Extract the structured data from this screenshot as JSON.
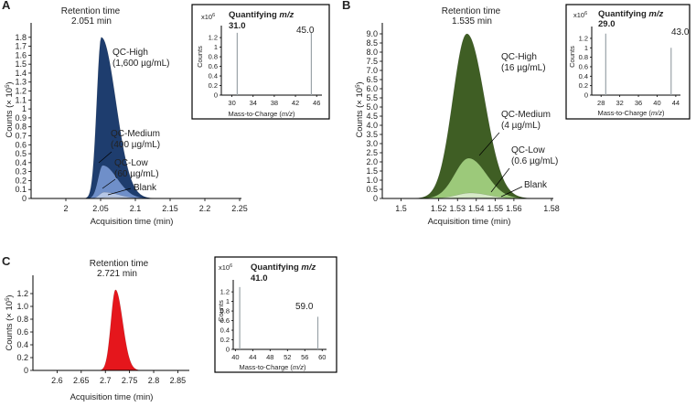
{
  "chart_data": [
    {
      "panel": "A",
      "type": "area",
      "peak_label_title": "Retention time",
      "peak_label_value": "2.051 min",
      "xlabel": "Acquisition time (min)",
      "ylabel_prefix": "Counts (",
      "ylabel_mult": "× 10",
      "ylabel_exp": "5",
      "ylabel_suffix": ")",
      "xlim": [
        1.95,
        2.25
      ],
      "ylim": [
        0,
        1.9
      ],
      "x_ticks": [
        2.0,
        2.05,
        2.1,
        2.15,
        2.2,
        2.25
      ],
      "x_tick_labels": [
        "2",
        "2.05",
        "2.1",
        "2.15",
        "2.2",
        "2.25"
      ],
      "y_ticks": [
        0,
        0.1,
        0.2,
        0.3,
        0.4,
        0.5,
        0.6,
        0.7,
        0.8,
        0.9,
        1.0,
        1.1,
        1.2,
        1.3,
        1.4,
        1.5,
        1.6,
        1.7,
        1.8
      ],
      "y_tick_labels": [
        "0",
        "0.1",
        "0.2",
        "0.3",
        "0.4",
        "0.5",
        "0.6",
        "0.7",
        "0.8",
        "0.9",
        "1",
        "1.1",
        "1.2",
        "1.3",
        "1.4",
        "1.5",
        "1.6",
        "1.7",
        "1.8"
      ],
      "series": [
        {
          "name": "QC-High",
          "conc": "(1,600 µg/mL)",
          "apex_x": 2.051,
          "height": 1.8,
          "color": "#1e3d6e"
        },
        {
          "name": "QC-Medium",
          "conc": "(400 µg/mL)",
          "apex_x": 2.053,
          "height": 0.37,
          "color": "#6f8fc9"
        },
        {
          "name": "QC-Low",
          "conc": "(60 µg/mL)",
          "apex_x": 2.055,
          "height": 0.07,
          "color": "#b6c7e6"
        },
        {
          "name": "Blank",
          "conc": "",
          "apex_x": 2.06,
          "height": 0.015,
          "color": "#dde6f4"
        }
      ],
      "inset": {
        "ylabel": "Counts",
        "ymult": "x10",
        "ymult_exp": "6",
        "title_prefix": "Quantifying ",
        "title_italic": "m/z",
        "quant_mz": "31.0",
        "xlabel_prefix": "Mass-to-Charge (",
        "xlabel_italic": "m/z",
        "xlabel_suffix": ")",
        "xlim": [
          28,
          47
        ],
        "ylim": [
          0,
          1.45
        ],
        "x_ticks": [
          30,
          34,
          38,
          42,
          46
        ],
        "y_ticks": [
          0,
          0.2,
          0.4,
          0.6,
          0.8,
          1.0,
          1.2
        ],
        "y_tick_labels": [
          "0",
          "0.2",
          "0.4",
          "0.6",
          "0.8",
          "1",
          "1.2"
        ],
        "bars": [
          {
            "mz": 31.0,
            "value": 1.3
          },
          {
            "mz": 45.0,
            "value": 1.3
          }
        ],
        "bar_label": "45.0"
      }
    },
    {
      "panel": "B",
      "type": "area",
      "peak_label_title": "Retention time",
      "peak_label_value": "1.535 min",
      "xlabel": "Acquisition time (min)",
      "ylabel_prefix": "Counts (",
      "ylabel_mult": "× 10",
      "ylabel_exp": "5",
      "ylabel_suffix": ")",
      "xlim": [
        1.49,
        1.58
      ],
      "ylim": [
        0,
        9.3
      ],
      "x_ticks": [
        1.5,
        1.52,
        1.53,
        1.54,
        1.55,
        1.56,
        1.58
      ],
      "x_tick_labels": [
        "1.5",
        "1.52",
        "1.53",
        "1.54",
        "1.55",
        "1.56",
        "1.58"
      ],
      "y_ticks": [
        0,
        0.5,
        1,
        1.5,
        2,
        2.5,
        3,
        3.5,
        4,
        4.5,
        5,
        5.5,
        6,
        6.5,
        7,
        7.5,
        8,
        8.5,
        9
      ],
      "y_tick_labels": [
        "0",
        "0.5",
        "1.0",
        "1.5",
        "2.0",
        "2.5",
        "3.0",
        "3.5",
        "4.0",
        "4.5",
        "5.0",
        "5.5",
        "6.0",
        "6.5",
        "7.0",
        "7.5",
        "8.0",
        "8.5",
        "9.0"
      ],
      "series": [
        {
          "name": "QC-High",
          "conc": "(16 µg/mL)",
          "apex_x": 1.535,
          "height": 9.0,
          "color": "#3f5e24"
        },
        {
          "name": "QC-Medium",
          "conc": "(4 µg/mL)",
          "apex_x": 1.536,
          "height": 2.2,
          "color": "#9cc97a"
        },
        {
          "name": "QC-Low",
          "conc": "(0.6 µg/mL)",
          "apex_x": 1.537,
          "height": 0.3,
          "color": "#d7eac8"
        },
        {
          "name": "Blank",
          "conc": "",
          "apex_x": 1.538,
          "height": 0.05,
          "color": "#eef6e6"
        }
      ],
      "inset": {
        "ylabel": "Counts",
        "ymult": "x10",
        "ymult_exp": "6",
        "title_prefix": "Quantifying ",
        "title_italic": "m/z",
        "quant_mz": "29.0",
        "xlabel_prefix": "Mass-to-Charge (",
        "xlabel_italic": "m/z",
        "xlabel_suffix": ")",
        "xlim": [
          26,
          45
        ],
        "ylim": [
          0,
          1.45
        ],
        "x_ticks": [
          28,
          32,
          36,
          40,
          44
        ],
        "y_ticks": [
          0,
          0.2,
          0.4,
          0.6,
          0.8,
          1.0,
          1.2
        ],
        "y_tick_labels": [
          "0",
          "0.2",
          "0.4",
          "0.6",
          "0.8",
          "1",
          "1.2"
        ],
        "bars": [
          {
            "mz": 29.0,
            "value": 1.3
          },
          {
            "mz": 43.0,
            "value": 1.0
          }
        ],
        "bar_label": "43.0"
      }
    },
    {
      "panel": "C",
      "type": "area",
      "peak_label_title": "Retention time",
      "peak_label_value": "2.721 min",
      "xlabel": "Acquisition time (min)",
      "ylabel_prefix": "Counts (",
      "ylabel_mult": "× 10",
      "ylabel_exp": "5",
      "ylabel_suffix": ")",
      "xlim": [
        2.55,
        2.87
      ],
      "ylim": [
        0,
        1.4
      ],
      "x_ticks": [
        2.6,
        2.65,
        2.7,
        2.75,
        2.8,
        2.85
      ],
      "x_tick_labels": [
        "2.6",
        "2.65",
        "2.7",
        "2.75",
        "2.8",
        "2.85"
      ],
      "y_ticks": [
        0,
        0.2,
        0.4,
        0.6,
        0.8,
        1.0,
        1.2
      ],
      "y_tick_labels": [
        "0",
        "0.2",
        "0.4",
        "0.6",
        "0.8",
        "1.0",
        "1.2"
      ],
      "series": [
        {
          "name": "",
          "conc": "",
          "apex_x": 2.721,
          "height": 1.26,
          "color": "#e5161c"
        }
      ],
      "inset": {
        "ylabel": "Counts",
        "ymult": "x10",
        "ymult_exp": "6",
        "title_prefix": "Quantifying ",
        "title_italic": "m/z",
        "quant_mz": "41.0",
        "xlabel_prefix": "Mass-to-Charge (",
        "xlabel_italic": "m/z",
        "xlabel_suffix": ")",
        "xlim": [
          39.5,
          61
        ],
        "ylim": [
          0,
          1.45
        ],
        "x_ticks": [
          40,
          44,
          48,
          52,
          56,
          60
        ],
        "y_ticks": [
          0,
          0.2,
          0.4,
          0.6,
          0.8,
          1.0,
          1.2
        ],
        "y_tick_labels": [
          "0",
          "0.2",
          "0.4",
          "0.6",
          "0.8",
          "1",
          "1.2"
        ],
        "bars": [
          {
            "mz": 41.0,
            "value": 1.3
          },
          {
            "mz": 59.0,
            "value": 0.68
          }
        ],
        "bar_label": "59.0"
      }
    }
  ]
}
